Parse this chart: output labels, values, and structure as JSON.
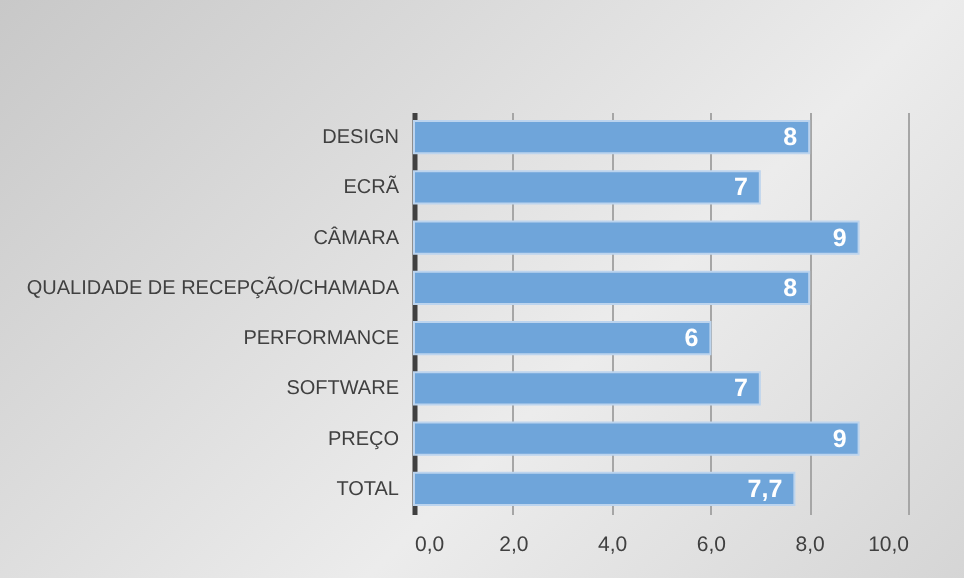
{
  "chart_data": {
    "type": "bar",
    "orientation": "horizontal",
    "categories": [
      "DESIGN",
      "ECRÃ",
      "CÂMARA",
      "QUALIDADE DE RECEPÇÃO/CHAMADA",
      "PERFORMANCE",
      "SOFTWARE",
      "PREÇO",
      "TOTAL"
    ],
    "values": [
      8,
      7,
      9,
      8,
      6,
      7,
      9,
      7.7
    ],
    "value_labels": [
      "8",
      "7",
      "9",
      "8",
      "6",
      "7",
      "9",
      "7,7"
    ],
    "color": "#6fa5da",
    "xlim": [
      0,
      10
    ],
    "xticks": [
      {
        "value": 0,
        "label": "0,0"
      },
      {
        "value": 2,
        "label": "2,0"
      },
      {
        "value": 4,
        "label": "4,0"
      },
      {
        "value": 6,
        "label": "6,0"
      },
      {
        "value": 8,
        "label": "8,0"
      },
      {
        "value": 10,
        "label": "10,0"
      }
    ],
    "grid": "x"
  }
}
